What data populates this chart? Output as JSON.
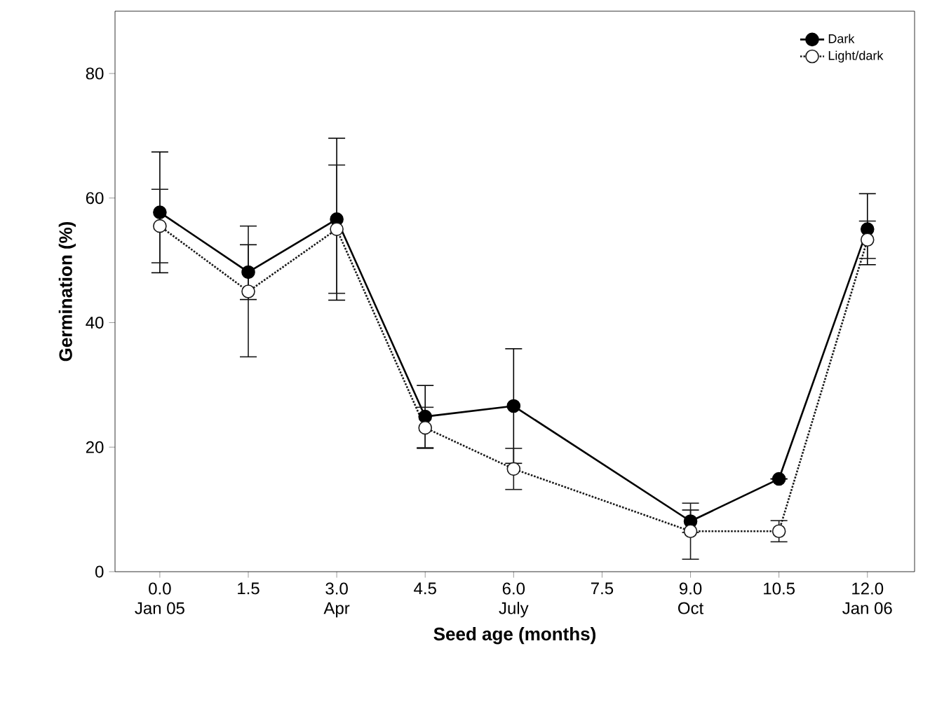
{
  "chart_data": {
    "type": "line",
    "xlabel": "Seed age (months)",
    "ylabel": "Germination (%)",
    "x": [
      0,
      1.5,
      3,
      4.5,
      6,
      9,
      10.5,
      12
    ],
    "series": [
      {
        "name": "Dark",
        "color": "#000000",
        "line_style": "solid",
        "values": [
          57.7,
          48.1,
          56.6,
          24.9,
          26.6,
          8.1,
          14.9,
          55.0
        ],
        "errors": [
          9.7,
          4.4,
          13.0,
          5.0,
          9.2,
          1.8,
          null,
          5.7
        ]
      },
      {
        "name": "Light/dark",
        "color": "#1a1a1a",
        "line_style": "dotted",
        "values": [
          55.5,
          45.0,
          55.0,
          23.1,
          16.5,
          6.5,
          6.5,
          53.3
        ],
        "errors": [
          5.9,
          10.5,
          10.3,
          3.3,
          3.3,
          4.5,
          1.7,
          3.0
        ]
      }
    ],
    "xlim": [
      -0.76,
      12.8
    ],
    "ylim": [
      0,
      90
    ],
    "xticks": [
      {
        "value": 0,
        "label": "0.0\nJan 05"
      },
      {
        "value": 1.5,
        "label": "1.5"
      },
      {
        "value": 3,
        "label": "3.0\nApr"
      },
      {
        "value": 4.5,
        "label": "4.5"
      },
      {
        "value": 6,
        "label": "6.0\nJuly"
      },
      {
        "value": 7.5,
        "label": "7.5"
      },
      {
        "value": 9,
        "label": "9.0\nOct"
      },
      {
        "value": 10.5,
        "label": "10.5"
      },
      {
        "value": 12,
        "label": "12.0\nJan 06"
      }
    ],
    "yticks": [
      0,
      20,
      40,
      60,
      80
    ],
    "marker": "circle",
    "legend": "top right",
    "grid": false
  }
}
